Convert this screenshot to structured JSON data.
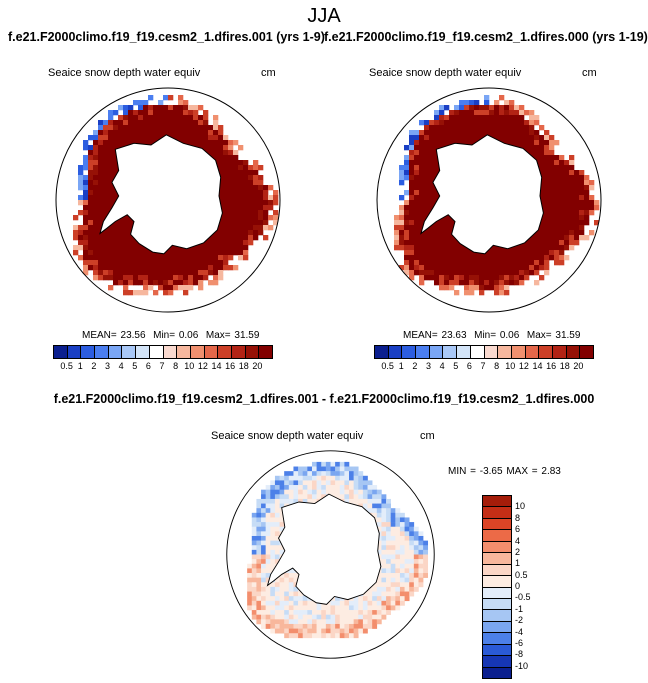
{
  "figure": {
    "season": "JJA",
    "left_case": "f.e21.F2000climo.f19_f19.cesm2_1.dfires.001 (yrs 1-9)",
    "right_case": "f.e21.F2000climo.f19_f19.cesm2_1.dfires.000 (yrs 1-19)",
    "diff_title": "f.e21.F2000climo.f19_f19.cesm2_1.dfires.001 - f.e21.F2000climo.f19_f19.cesm2_1.dfires.000"
  },
  "panels": {
    "left": {
      "variable": "Seaice snow depth water equiv",
      "units": "cm",
      "mean_label": "MEAN=",
      "mean": "23.56",
      "min_label": "Min=",
      "min": "0.06",
      "max_label": "Max=",
      "max": "31.59"
    },
    "right": {
      "variable": "Seaice snow depth water equiv",
      "units": "cm",
      "mean_label": "MEAN=",
      "mean": "23.63",
      "min_label": "Min=",
      "min": "0.06",
      "max_label": "Max=",
      "max": "31.59"
    },
    "diff": {
      "variable": "Seaice snow depth water equiv",
      "units": "cm",
      "min_label": "MIN =",
      "min": "-3.65",
      "max_label": "MAX =",
      "max": "2.83"
    }
  },
  "colorbar_top": {
    "labels": [
      "0.5",
      "1",
      "2",
      "3",
      "4",
      "5",
      "6",
      "7",
      "8",
      "10",
      "12",
      "14",
      "16",
      "18",
      "20"
    ],
    "colors": [
      "#0b1f8f",
      "#1a3fc4",
      "#2c5de0",
      "#4b7ef0",
      "#7aa6f5",
      "#a9c8f7",
      "#d3e4f8",
      "#ffffff",
      "#f9d9cf",
      "#f6b79e",
      "#f0906f",
      "#e4674a",
      "#cc3f27",
      "#b22315",
      "#961106",
      "#820000"
    ]
  },
  "colorbar_diff": {
    "labels": [
      "10",
      "8",
      "6",
      "4",
      "2",
      "1",
      "0.5",
      "0",
      "-0.5",
      "-1",
      "-2",
      "-4",
      "-6",
      "-8",
      "-10"
    ],
    "colors": [
      "#a51d0a",
      "#c42e16",
      "#dc4426",
      "#ec6a47",
      "#f38e6d",
      "#f8b79c",
      "#fbd6c6",
      "#fdece2",
      "#e3edfa",
      "#c6dcf6",
      "#a6c6f3",
      "#7aa6f0",
      "#4c80e8",
      "#2a5ad6",
      "#1636b4",
      "#0b1f8f"
    ]
  }
}
